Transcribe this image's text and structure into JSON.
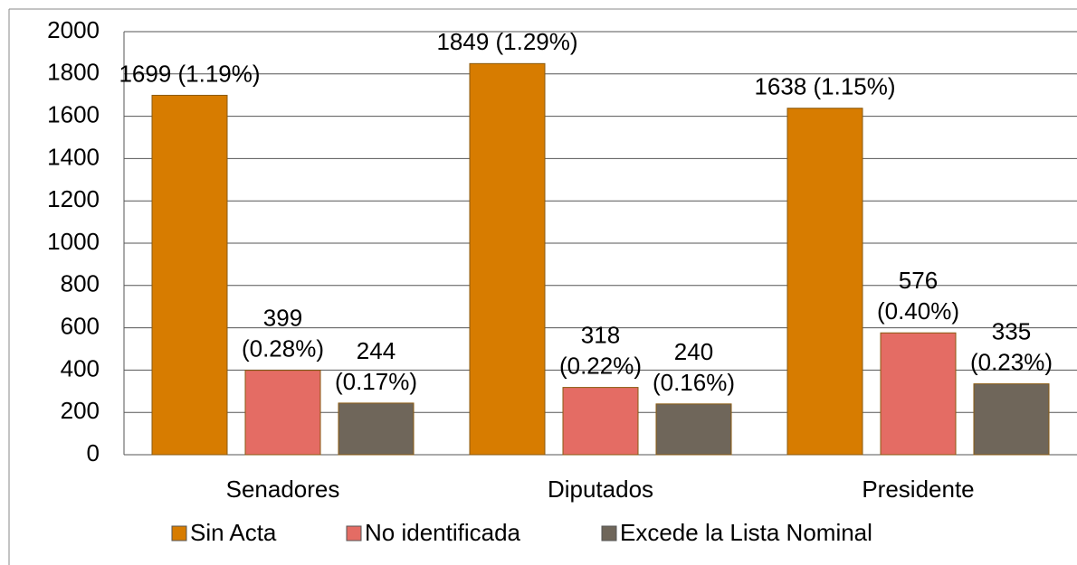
{
  "chart_data": {
    "type": "bar",
    "categories": [
      "Senadores",
      "Diputados",
      "Presidente"
    ],
    "series": [
      {
        "name": "Sin Acta",
        "color": "#d77c00",
        "values": [
          1699,
          1849,
          1638
        ],
        "value_labels": [
          "1699 (1.19%)",
          "1849 (1.29%)",
          "1638 (1.15%)"
        ]
      },
      {
        "name": "No identificada",
        "color": "#e46c64",
        "values": [
          399,
          318,
          576
        ],
        "value_labels": [
          "399 (0.28%)",
          "318 (0.22%)",
          "576 (0.40%)"
        ]
      },
      {
        "name": "Excede la Lista Nominal",
        "color": "#6f665a",
        "values": [
          244,
          240,
          335
        ],
        "value_labels": [
          "244 (0.17%)",
          "240 (0.16%)",
          "335 (0.23%)"
        ]
      }
    ],
    "ylim": [
      0,
      2000
    ],
    "yticks": [
      0,
      200,
      400,
      600,
      800,
      1000,
      1200,
      1400,
      1600,
      1800,
      2000
    ],
    "grid": true,
    "legend": "bottom"
  }
}
